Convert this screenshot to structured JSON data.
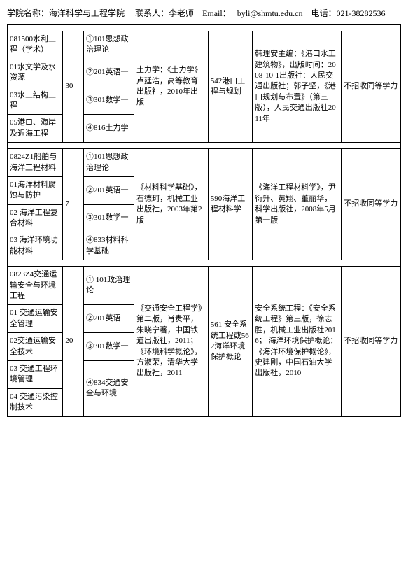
{
  "header": {
    "college_label": "学院名称：",
    "college_name": "海洋科学与工程学院",
    "contact_label": "联系人：",
    "contact_name": "李老师",
    "email_label": "Email：",
    "email": "byli@shmtu.edu.cn",
    "phone_label": "电话：",
    "phone": "021-38282536"
  },
  "groups": [
    {
      "quota": "30",
      "book1": "土力学：《土力学》卢廷浩，高等教育出版社，2010年出版",
      "book2": "542港口工程与规划",
      "book3": "韩理安主编：《港口水工建筑物》，出版时间：2008-10-1出版社：人民交通出版社；郭子坚，《港口规划与布置》（第三版），人民交通出版社2011年",
      "note": "不招收同等学力",
      "rows": [
        {
          "spec": "081500水利工程（学术）",
          "subj": "①101思想政治理论"
        },
        {
          "spec": "01水文学及水资源",
          "subj": "②201英语一"
        },
        {
          "spec": "03水工结构工程",
          "subj": "③301数学一"
        },
        {
          "spec": "05港口、海岸及近海工程",
          "subj": "④816土力学"
        }
      ]
    },
    {
      "quota": "7",
      "book1": "《材料科学基础》，石德珂，机械工业出版社，2003年第2版",
      "book2": "590海洋工程材料学",
      "book3": "《海洋工程材料学》，尹衍升、黄翔、董丽华，科学出版社，2008年5月第一版",
      "note": "不招收同等学力",
      "rows": [
        {
          "spec": "0824Z1船舶与海洋工程材料",
          "subj": "①101思想政治理论"
        },
        {
          "spec": "01海洋材料腐蚀与防护",
          "subj": "②201英语一"
        },
        {
          "spec": "02 海洋工程复合材料",
          "subj": "③301数学一"
        },
        {
          "spec": "03 海洋环境功能材料",
          "subj": "④833材料科学基础"
        }
      ]
    },
    {
      "quota": "20",
      "book1": "《交通安全工程学》第二版，肖贵平，朱晓宁著，中国铁道出版社，2011；《环境科学概论》，方淑荣，清华大学出版社，2011",
      "book2": "561 安全系统工程或562海洋环境保护概论",
      "book3": "安全系统工程：《安全系统工程》第三版，徐志胜，机械工业出版社2016；  海洋环境保护概论：《海洋环境保护概论》，史建刚，中国石油大学出版社，2010",
      "note": "不招收同等学力",
      "rows": [
        {
          "spec": "0823Z4交通运输安全与环境工程",
          "subj": "① 101政治理论"
        },
        {
          "spec": "01 交通运输安全管理",
          "subj": "②201英语"
        },
        {
          "spec": "02交通运输安全技术",
          "subj": "③301数学一"
        },
        {
          "spec": "03 交通工程环境管理",
          "subj": "④834交通安全与环境"
        },
        {
          "spec": "04 交通污染控制技术",
          "subj": ""
        }
      ]
    }
  ]
}
